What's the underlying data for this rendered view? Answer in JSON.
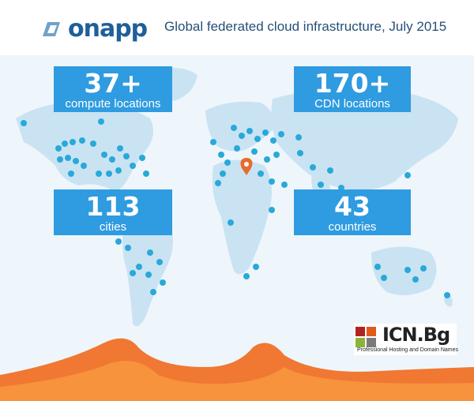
{
  "header": {
    "brand": "onapp",
    "headline": "Global federated cloud infrastructure, July 2015",
    "brand_color": "#1f5f9a"
  },
  "stats": [
    {
      "value": "37+",
      "label": "compute locations"
    },
    {
      "value": "170+",
      "label": "CDN locations"
    },
    {
      "value": "113",
      "label": "cities"
    },
    {
      "value": "43",
      "label": "countries"
    }
  ],
  "partner": {
    "name": "ICN.Bg",
    "tagline": "Professional Hosting and Domain Names",
    "colors": [
      "#b22222",
      "#e05a1b",
      "#8bb339",
      "#7a7a7a"
    ]
  },
  "theme": {
    "accent": "#2f9be0",
    "map_land": "#c9e3f3",
    "pin": "#29a9d9",
    "highlight_pin": "#e86b2a",
    "ribbon": "#f06a1c"
  }
}
